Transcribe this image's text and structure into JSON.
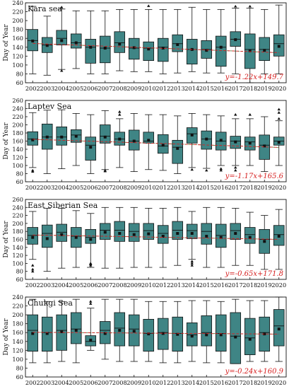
{
  "chart_data": [
    {
      "type": "box",
      "title": "Kara sea",
      "ylabel": "Day of Year",
      "ylim": [
        60,
        240
      ],
      "yticks": [
        60,
        80,
        100,
        120,
        140,
        160,
        180,
        200,
        220,
        240
      ],
      "categories": [
        "2002",
        "2003",
        "2004",
        "2005",
        "2006",
        "2007",
        "2008",
        "2009",
        "2010",
        "2012",
        "2013",
        "2014",
        "2015",
        "2016",
        "2017",
        "2018",
        "2019",
        "2020"
      ],
      "boxes": [
        {
          "min": 80,
          "q1": 132,
          "median": 155,
          "q3": 180,
          "max": 232,
          "mean": 154,
          "outliers": []
        },
        {
          "min": 77,
          "q1": 128,
          "median": 145,
          "q3": 162,
          "max": 210,
          "mean": 144,
          "outliers": []
        },
        {
          "min": 90,
          "q1": 145,
          "median": 160,
          "q3": 178,
          "max": 226,
          "mean": 155,
          "outliers": [
            87,
            230
          ]
        },
        {
          "min": 92,
          "q1": 138,
          "median": 150,
          "q3": 170,
          "max": 222,
          "mean": 150,
          "outliers": []
        },
        {
          "min": 80,
          "q1": 104,
          "median": 140,
          "q3": 158,
          "max": 222,
          "mean": 140,
          "outliers": []
        },
        {
          "min": 80,
          "q1": 105,
          "median": 138,
          "q3": 165,
          "max": 222,
          "mean": 138,
          "outliers": []
        },
        {
          "min": 87,
          "q1": 128,
          "median": 150,
          "q3": 175,
          "max": 225,
          "mean": 147,
          "outliers": []
        },
        {
          "min": 85,
          "q1": 113,
          "median": 138,
          "q3": 160,
          "max": 225,
          "mean": 139,
          "outliers": []
        },
        {
          "min": 85,
          "q1": 110,
          "median": 138,
          "q3": 152,
          "max": 225,
          "mean": 136,
          "outliers": [
            233
          ]
        },
        {
          "min": 80,
          "q1": 108,
          "median": 140,
          "q3": 160,
          "max": 225,
          "mean": 138,
          "outliers": []
        },
        {
          "min": 82,
          "q1": 130,
          "median": 148,
          "q3": 168,
          "max": 225,
          "mean": 146,
          "outliers": []
        },
        {
          "min": 85,
          "q1": 102,
          "median": 135,
          "q3": 158,
          "max": 230,
          "mean": 135,
          "outliers": []
        },
        {
          "min": 82,
          "q1": 115,
          "median": 135,
          "q3": 155,
          "max": 225,
          "mean": 133,
          "outliers": []
        },
        {
          "min": 82,
          "q1": 97,
          "median": 140,
          "q3": 165,
          "max": 225,
          "mean": 140,
          "outliers": []
        },
        {
          "min": 80,
          "q1": 142,
          "median": 158,
          "q3": 175,
          "max": 228,
          "mean": 157,
          "outliers": [
            232
          ]
        },
        {
          "min": 60,
          "q1": 92,
          "median": 135,
          "q3": 170,
          "max": 228,
          "mean": 132,
          "outliers": [
            232
          ]
        },
        {
          "min": 80,
          "q1": 110,
          "median": 135,
          "q3": 162,
          "max": 225,
          "mean": 133,
          "outliers": []
        },
        {
          "min": 80,
          "q1": 120,
          "median": 148,
          "q3": 168,
          "max": 235,
          "mean": 142,
          "outliers": []
        }
      ],
      "trend_label": "y=-1.22x+149.7",
      "trend": {
        "slope": -1.22,
        "intercept": 149.7
      }
    },
    {
      "type": "box",
      "title": "Laptev Sea",
      "ylabel": "Day of Year",
      "ylim": [
        60,
        260
      ],
      "yticks": [
        60,
        80,
        100,
        120,
        140,
        160,
        180,
        200,
        220,
        240,
        260
      ],
      "categories": [
        "2002",
        "2003",
        "2004",
        "2005",
        "2006",
        "2007",
        "2008",
        "2009",
        "2010",
        "2012",
        "2013",
        "2014",
        "2015",
        "2016",
        "2017",
        "2018",
        "2019",
        "2020"
      ],
      "boxes": [
        {
          "min": 95,
          "q1": 150,
          "median": 165,
          "q3": 183,
          "max": 230,
          "mean": 163,
          "outliers": [
            85,
            88
          ]
        },
        {
          "min": 80,
          "q1": 140,
          "median": 170,
          "q3": 202,
          "max": 236,
          "mean": 170,
          "outliers": []
        },
        {
          "min": 92,
          "q1": 150,
          "median": 170,
          "q3": 195,
          "max": 237,
          "mean": 170,
          "outliers": []
        },
        {
          "min": 100,
          "q1": 157,
          "median": 175,
          "q3": 188,
          "max": 228,
          "mean": 172,
          "outliers": []
        },
        {
          "min": 80,
          "q1": 113,
          "median": 150,
          "q3": 170,
          "max": 225,
          "mean": 145,
          "outliers": []
        },
        {
          "min": 90,
          "q1": 155,
          "median": 172,
          "q3": 200,
          "max": 235,
          "mean": 170,
          "outliers": [
            86,
            88
          ]
        },
        {
          "min": 95,
          "q1": 150,
          "median": 165,
          "q3": 182,
          "max": 215,
          "mean": 165,
          "outliers": [
            225,
            232
          ]
        },
        {
          "min": 85,
          "q1": 138,
          "median": 160,
          "q3": 187,
          "max": 228,
          "mean": 160,
          "outliers": []
        },
        {
          "min": 90,
          "q1": 155,
          "median": 160,
          "q3": 182,
          "max": 225,
          "mean": 162,
          "outliers": []
        },
        {
          "min": 88,
          "q1": 130,
          "median": 148,
          "q3": 176,
          "max": 225,
          "mean": 150,
          "outliers": []
        },
        {
          "min": 80,
          "q1": 105,
          "median": 145,
          "q3": 162,
          "max": 222,
          "mean": 142,
          "outliers": []
        },
        {
          "min": 95,
          "q1": 155,
          "median": 178,
          "q3": 193,
          "max": 228,
          "mean": 175,
          "outliers": [
            90
          ]
        },
        {
          "min": 93,
          "q1": 140,
          "median": 165,
          "q3": 185,
          "max": 225,
          "mean": 165,
          "outliers": [
            88
          ]
        },
        {
          "min": 100,
          "q1": 138,
          "median": 160,
          "q3": 182,
          "max": 222,
          "mean": 162,
          "outliers": [
            88,
            92
          ]
        },
        {
          "min": 100,
          "q1": 142,
          "median": 160,
          "q3": 172,
          "max": 215,
          "mean": 158,
          "outliers": [
            88,
            95,
            225
          ]
        },
        {
          "min": 100,
          "q1": 138,
          "median": 158,
          "q3": 170,
          "max": 215,
          "mean": 155,
          "outliers": [
            225
          ]
        },
        {
          "min": 85,
          "q1": 115,
          "median": 150,
          "q3": 175,
          "max": 220,
          "mean": 148,
          "outliers": []
        },
        {
          "min": 100,
          "q1": 150,
          "median": 160,
          "q3": 170,
          "max": 210,
          "mean": 157,
          "outliers": [
            215,
            230,
            238
          ]
        }
      ],
      "trend_label": "y=-1.17x+165.6",
      "trend": {
        "slope": -1.17,
        "intercept": 165.6
      }
    },
    {
      "type": "box",
      "title": "East Siberian Sea",
      "ylabel": "Day of Year",
      "ylim": [
        60,
        260
      ],
      "yticks": [
        60,
        80,
        100,
        120,
        140,
        160,
        180,
        200,
        220,
        240,
        260
      ],
      "categories": [
        "2002",
        "2003",
        "2004",
        "2005",
        "2006",
        "2007",
        "2008",
        "2009",
        "2010",
        "2012",
        "2013",
        "2014",
        "2015",
        "2016",
        "2017",
        "2018",
        "2019",
        "2020"
      ],
      "boxes": [
        {
          "min": 110,
          "q1": 148,
          "median": 170,
          "q3": 190,
          "max": 230,
          "mean": 165,
          "outliers": [
            80,
            85,
            95
          ]
        },
        {
          "min": 80,
          "q1": 140,
          "median": 175,
          "q3": 196,
          "max": 238,
          "mean": 162,
          "outliers": []
        },
        {
          "min": 88,
          "q1": 155,
          "median": 178,
          "q3": 198,
          "max": 238,
          "mean": 172,
          "outliers": []
        },
        {
          "min": 90,
          "q1": 140,
          "median": 168,
          "q3": 190,
          "max": 232,
          "mean": 165,
          "outliers": []
        },
        {
          "min": 90,
          "q1": 150,
          "median": 165,
          "q3": 185,
          "max": 225,
          "mean": 160,
          "outliers": [
            95,
            98,
            100
          ]
        },
        {
          "min": 88,
          "q1": 160,
          "median": 183,
          "q3": 200,
          "max": 240,
          "mean": 178,
          "outliers": []
        },
        {
          "min": 88,
          "q1": 155,
          "median": 183,
          "q3": 205,
          "max": 240,
          "mean": 175,
          "outliers": []
        },
        {
          "min": 90,
          "q1": 155,
          "median": 180,
          "q3": 200,
          "max": 240,
          "mean": 172,
          "outliers": []
        },
        {
          "min": 90,
          "q1": 160,
          "median": 182,
          "q3": 200,
          "max": 238,
          "mean": 174,
          "outliers": []
        },
        {
          "min": 90,
          "q1": 150,
          "median": 175,
          "q3": 195,
          "max": 238,
          "mean": 168,
          "outliers": []
        },
        {
          "min": 95,
          "q1": 160,
          "median": 183,
          "q3": 205,
          "max": 240,
          "mean": 175,
          "outliers": []
        },
        {
          "min": 110,
          "q1": 162,
          "median": 182,
          "q3": 198,
          "max": 230,
          "mean": 175,
          "outliers": [
            95,
            100,
            105
          ]
        },
        {
          "min": 90,
          "q1": 148,
          "median": 180,
          "q3": 200,
          "max": 240,
          "mean": 168,
          "outliers": []
        },
        {
          "min": 90,
          "q1": 140,
          "median": 170,
          "q3": 198,
          "max": 240,
          "mean": 165,
          "outliers": []
        },
        {
          "min": 95,
          "q1": 160,
          "median": 182,
          "q3": 200,
          "max": 238,
          "mean": 175,
          "outliers": []
        },
        {
          "min": 95,
          "q1": 150,
          "median": 172,
          "q3": 190,
          "max": 228,
          "mean": 165,
          "outliers": []
        },
        {
          "min": 85,
          "q1": 125,
          "median": 160,
          "q3": 185,
          "max": 220,
          "mean": 155,
          "outliers": []
        },
        {
          "min": 85,
          "q1": 145,
          "median": 172,
          "q3": 195,
          "max": 235,
          "mean": 168,
          "outliers": []
        }
      ],
      "trend_label": "y=-0.65x+171.8",
      "trend": {
        "slope": -0.65,
        "intercept": 171.8
      }
    },
    {
      "type": "box",
      "title": "Chukgi Sea",
      "ylabel": "Day of Year",
      "ylim": [
        60,
        240
      ],
      "yticks": [
        60,
        80,
        100,
        120,
        140,
        160,
        180,
        200,
        220,
        240
      ],
      "categories": [
        "2002",
        "2003",
        "2004",
        "2005",
        "2006",
        "2007",
        "2008",
        "2009",
        "2010",
        "2012",
        "2013",
        "2014",
        "2015",
        "2016",
        "2017",
        "2018",
        "2019",
        "2020"
      ],
      "boxes": [
        {
          "min": 92,
          "q1": 118,
          "median": 165,
          "q3": 200,
          "max": 235,
          "mean": 158,
          "outliers": []
        },
        {
          "min": 92,
          "q1": 118,
          "median": 160,
          "q3": 195,
          "max": 230,
          "mean": 158,
          "outliers": []
        },
        {
          "min": 95,
          "q1": 120,
          "median": 165,
          "q3": 200,
          "max": 230,
          "mean": 162,
          "outliers": []
        },
        {
          "min": 92,
          "q1": 135,
          "median": 168,
          "q3": 205,
          "max": 235,
          "mean": 165,
          "outliers": []
        },
        {
          "min": 120,
          "q1": 130,
          "median": 140,
          "q3": 153,
          "max": 215,
          "mean": 143,
          "outliers": [
            225,
            230
          ]
        },
        {
          "min": 100,
          "q1": 135,
          "median": 165,
          "q3": 185,
          "max": 235,
          "mean": 158,
          "outliers": []
        },
        {
          "min": 95,
          "q1": 130,
          "median": 170,
          "q3": 205,
          "max": 235,
          "mean": 165,
          "outliers": []
        },
        {
          "min": 95,
          "q1": 130,
          "median": 168,
          "q3": 200,
          "max": 235,
          "mean": 163,
          "outliers": []
        },
        {
          "min": 95,
          "q1": 118,
          "median": 158,
          "q3": 190,
          "max": 230,
          "mean": 157,
          "outliers": []
        },
        {
          "min": 92,
          "q1": 122,
          "median": 160,
          "q3": 192,
          "max": 230,
          "mean": 158,
          "outliers": []
        },
        {
          "min": 92,
          "q1": 118,
          "median": 158,
          "q3": 195,
          "max": 230,
          "mean": 156,
          "outliers": []
        },
        {
          "min": 95,
          "q1": 130,
          "median": 155,
          "q3": 182,
          "max": 232,
          "mean": 152,
          "outliers": []
        },
        {
          "min": 92,
          "q1": 130,
          "median": 160,
          "q3": 198,
          "max": 232,
          "mean": 155,
          "outliers": []
        },
        {
          "min": 92,
          "q1": 118,
          "median": 158,
          "q3": 200,
          "max": 230,
          "mean": 155,
          "outliers": []
        },
        {
          "min": 90,
          "q1": 90,
          "median": 152,
          "q3": 205,
          "max": 235,
          "mean": 150,
          "outliers": []
        },
        {
          "min": 95,
          "q1": 110,
          "median": 148,
          "q3": 192,
          "max": 232,
          "mean": 145,
          "outliers": []
        },
        {
          "min": 95,
          "q1": 118,
          "median": 160,
          "q3": 195,
          "max": 232,
          "mean": 157,
          "outliers": []
        },
        {
          "min": 95,
          "q1": 130,
          "median": 175,
          "q3": 212,
          "max": 240,
          "mean": 168,
          "outliers": []
        }
      ],
      "trend_label": "y=-0.24x+160.9",
      "trend": {
        "slope": -0.24,
        "intercept": 160.9
      }
    }
  ],
  "colors": {
    "box_fill": "#3f8585",
    "box_stroke": "#111111",
    "mean_marker": "#111111",
    "trend_line": "#d62020",
    "trend_line_alt": "#2f8a2f",
    "axis": "#111111",
    "dashed_mean": "#e07a1a"
  }
}
